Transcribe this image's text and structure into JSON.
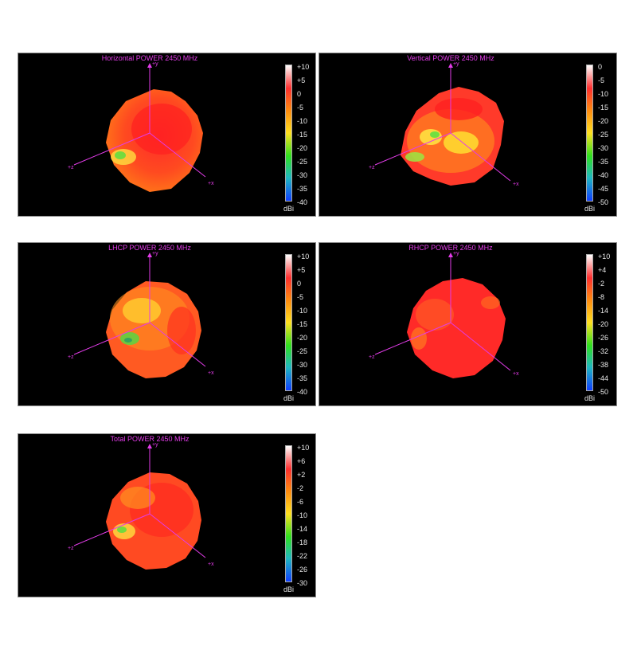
{
  "panels": [
    {
      "id": "horizontal",
      "title": "Horizontal POWER 2450  MHz",
      "ticks": [
        "+10",
        "+5",
        "0",
        "-5",
        "-10",
        "-15",
        "-20",
        "-25",
        "-30",
        "-35",
        "-40"
      ],
      "unit": "dBi"
    },
    {
      "id": "vertical",
      "title": "Vertical POWER 2450  MHz",
      "ticks": [
        "0",
        "-5",
        "-10",
        "-15",
        "-20",
        "-25",
        "-30",
        "-35",
        "-40",
        "-45",
        "-50"
      ],
      "unit": "dBi"
    },
    {
      "id": "lhcp",
      "title": "LHCP POWER 2450  MHz",
      "ticks": [
        "+10",
        "+5",
        "0",
        "-5",
        "-10",
        "-15",
        "-20",
        "-25",
        "-30",
        "-35",
        "-40"
      ],
      "unit": "dBi"
    },
    {
      "id": "rhcp",
      "title": "RHCP POWER 2450  MHz",
      "ticks": [
        "+10",
        "+4",
        "-2",
        "-8",
        "-14",
        "-20",
        "-26",
        "-32",
        "-38",
        "-44",
        "-50"
      ],
      "unit": "dBi"
    },
    {
      "id": "total",
      "title": "Total POWER 2450  MHz",
      "ticks": [
        "+10",
        "+6",
        "+2",
        "-2",
        "-6",
        "-10",
        "-14",
        "-18",
        "-22",
        "-26",
        "-30"
      ],
      "unit": "dBi"
    }
  ],
  "axes": {
    "y": "+y",
    "z": "+z",
    "x": "+x"
  },
  "colorscale": [
    "#ffffff",
    "#ff3030",
    "#ff8a10",
    "#ffe020",
    "#30e020",
    "#20b8c0",
    "#1040ff"
  ],
  "chart_data": {
    "type": "heatmap",
    "frequency": "2450  MHz",
    "charts": [
      {
        "title": "Horizontal POWER 2450  MHz",
        "scale_range_dBi": [
          -40,
          10
        ]
      },
      {
        "title": "Vertical POWER 2450  MHz",
        "scale_range_dBi": [
          -50,
          0
        ]
      },
      {
        "title": "LHCP POWER 2450  MHz",
        "scale_range_dBi": [
          -40,
          10
        ]
      },
      {
        "title": "RHCP POWER 2450  MHz",
        "scale_range_dBi": [
          -50,
          10
        ]
      },
      {
        "title": "Total POWER 2450  MHz",
        "scale_range_dBi": [
          -30,
          10
        ]
      }
    ]
  }
}
